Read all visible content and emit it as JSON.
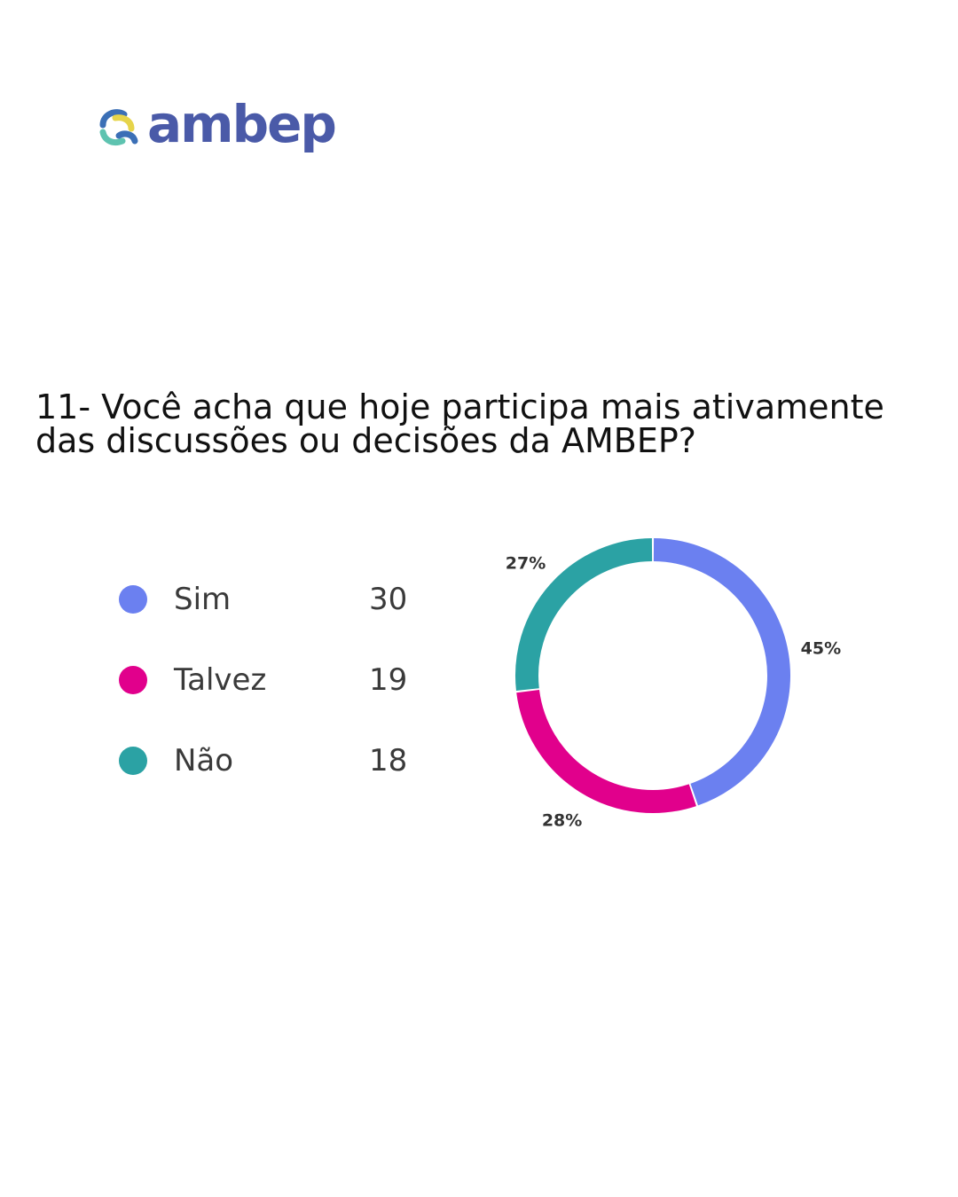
{
  "brand": {
    "name": "ambep",
    "colors": {
      "wordmark": "#4a5aa8",
      "mark_blue": "#3b6fb6",
      "mark_teal": "#5ec3b0",
      "mark_yellow": "#e6d44a"
    }
  },
  "question": "11- Você acha que hoje participa mais ativamente das discussões ou decisões da AMBEP?",
  "legend": [
    {
      "label": "Sim",
      "value": "30",
      "color": "#6b80f0"
    },
    {
      "label": "Talvez",
      "value": "19",
      "color": "#e1008c"
    },
    {
      "label": "Não",
      "value": "18",
      "color": "#2ba2a4"
    }
  ],
  "chart_data": {
    "type": "pie",
    "donut": true,
    "categories": [
      "Sim",
      "Talvez",
      "Não"
    ],
    "values": [
      30,
      19,
      18
    ],
    "percent_labels": [
      "45%",
      "28%",
      "27%"
    ],
    "colors": [
      "#6b80f0",
      "#e1008c",
      "#2ba2a4"
    ],
    "start": "top",
    "direction": "clockwise"
  }
}
